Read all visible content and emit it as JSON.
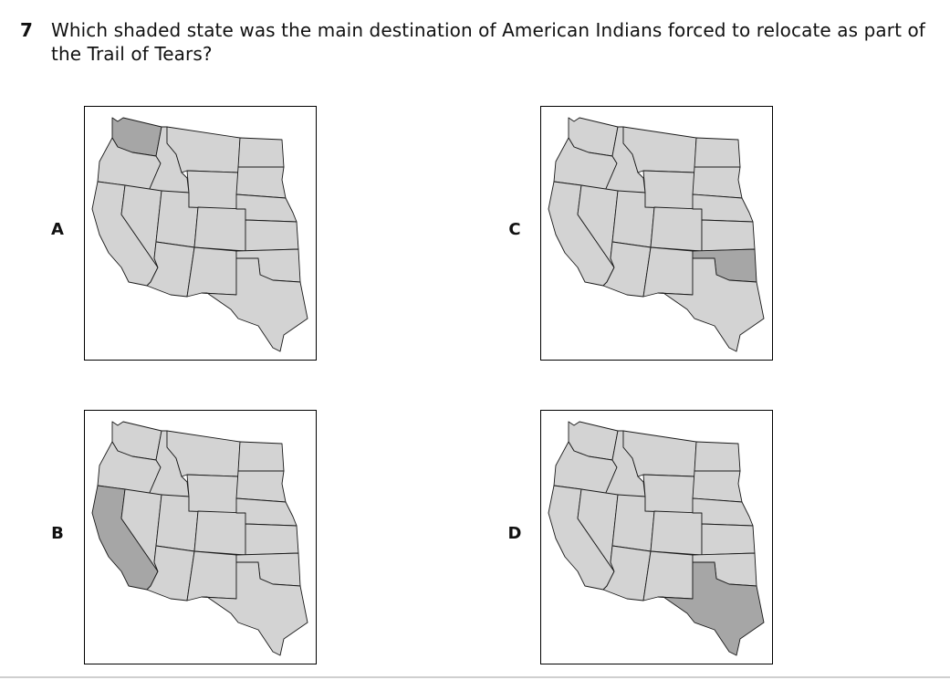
{
  "question": {
    "number": "7",
    "text": "Which shaded state was the main destination of American Indians forced to relocate as part of the Trail of Tears?"
  },
  "choices": [
    {
      "letter": "A",
      "shaded_state": "washington"
    },
    {
      "letter": "B",
      "shaded_state": "california"
    },
    {
      "letter": "C",
      "shaded_state": "oklahoma"
    },
    {
      "letter": "D",
      "shaded_state": "texas"
    }
  ],
  "colors": {
    "state_fill": "#d3d3d3",
    "shaded_fill": "#a6a6a6",
    "outline": "#1a1a1a"
  }
}
